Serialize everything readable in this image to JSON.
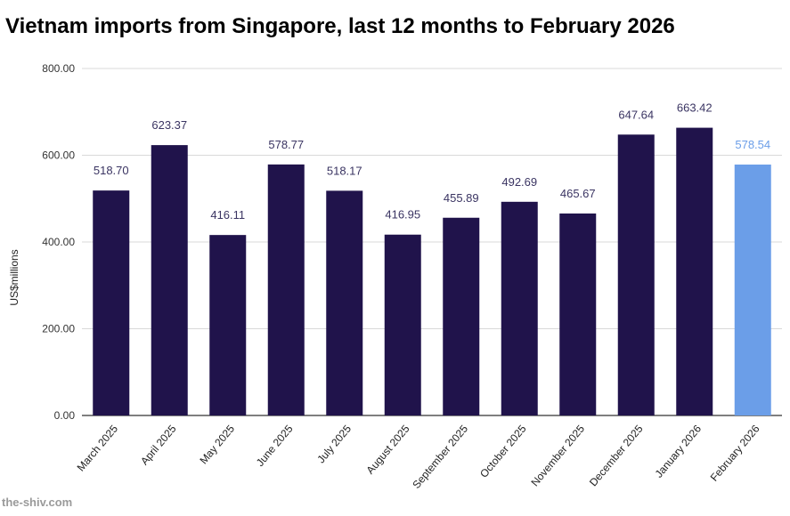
{
  "chart_data": {
    "type": "bar",
    "title": "Vietnam imports from Singapore, last 12 months to February 2026",
    "xlabel": "",
    "ylabel": "US$millions",
    "ylim": [
      0,
      800
    ],
    "yticks": [
      "0.00",
      "200.00",
      "400.00",
      "600.00",
      "800.00"
    ],
    "grid": true,
    "categories": [
      "March 2025",
      "April 2025",
      "May 2025",
      "June 2025",
      "July 2025",
      "August 2025",
      "September 2025",
      "October 2025",
      "November 2025",
      "December 2025",
      "January 2026",
      "February 2026"
    ],
    "values": [
      518.7,
      623.37,
      416.11,
      578.77,
      518.17,
      416.95,
      455.89,
      492.69,
      465.67,
      647.64,
      663.42,
      578.54
    ],
    "labels": [
      "518.70",
      "623.37",
      "416.11",
      "578.77",
      "518.17",
      "416.95",
      "455.89",
      "492.69",
      "465.67",
      "647.64",
      "663.42",
      "578.54"
    ],
    "colors": {
      "bar": "#20134b",
      "highlight": "#6b9ee8",
      "label": "#3a3462",
      "highlight_label": "#6b9ee8"
    }
  },
  "watermark": "the-shiv.com"
}
